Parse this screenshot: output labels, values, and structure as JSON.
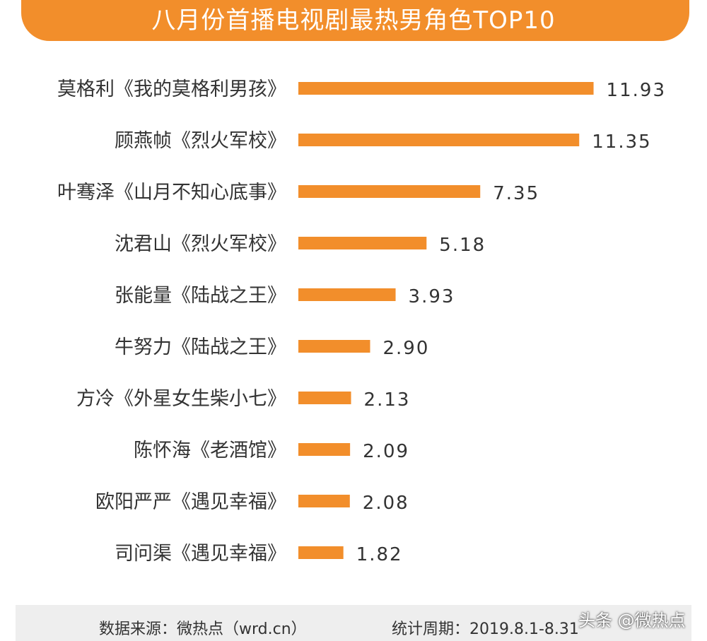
{
  "chart_data": {
    "type": "bar",
    "orientation": "horizontal",
    "title": "八月份首播电视剧最热男角色TOP10",
    "categories": [
      "莫格利《我的莫格利男孩》",
      "顾燕帧《烈火军校》",
      "叶骞泽《山月不知心底事》",
      "沈君山《烈火军校》",
      "张能量《陆战之王》",
      "牛努力《陆战之王》",
      "方冷《外星女生柴小七》",
      "陈怀海《老酒馆》",
      "欧阳严严《遇见幸福》",
      "司问渠《遇见幸福》"
    ],
    "values": [
      11.93,
      11.35,
      7.35,
      5.18,
      3.93,
      2.9,
      2.13,
      2.09,
      2.08,
      1.82
    ],
    "value_labels": [
      "11.93",
      "11.35",
      "7.35",
      "5.18",
      "3.93",
      "2.90",
      "2.13",
      "2.09",
      "2.08",
      "1.82"
    ],
    "bar_color": "#f28e2b",
    "grid": false
  },
  "footer": {
    "source": "数据来源：微热点（wrd.cn）",
    "period": "统计周期：2019.8.1-8.31"
  },
  "watermark": "头条 @微热点"
}
